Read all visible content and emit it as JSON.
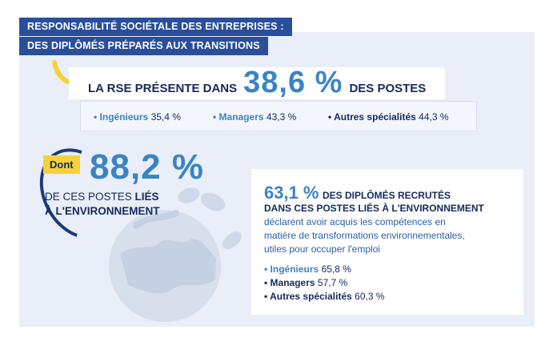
{
  "header": {
    "title_line1": "RESPONSABILITÉ SOCIÉTALE DES ENTREPRISES :",
    "title_line2": "DES DIPLÔMÉS PRÉPARÉS AUX TRANSITIONS"
  },
  "rse": {
    "lead": "LA RSE PRÉSENTE DANS",
    "value": "38,6 %",
    "tail": "DES POSTES"
  },
  "specialites": [
    {
      "label": "• Ingénieurs",
      "value": "35,4 %"
    },
    {
      "label": "• Managers",
      "value": "43,3 %"
    },
    {
      "label": "• Autres spécialités",
      "value": "44,3 %"
    }
  ],
  "environnement": {
    "tag": "Dont",
    "value": "88,2 %",
    "line1_prefix": "DE CES POSTES",
    "line1_bold": "LIÉS",
    "line2": "À L'ENVIRONNEMENT"
  },
  "card": {
    "pct": "63,1 %",
    "head_text": "DES DIPLÔMÉS RECRUTÉS",
    "sub": "DANS CES POSTES LIÉS À L'ENVIRONNEMENT",
    "body_line1": "déclarent avoir acquis les compétences en",
    "body_line2": "matière de transformations environnementales,",
    "body_line3": "utiles pour occuper l'emploi",
    "items": [
      {
        "label": "• Ingénieurs",
        "value": "65,8 %"
      },
      {
        "label": "• Managers",
        "value": "57,7 %"
      },
      {
        "label": "• Autres spécialités",
        "value": "60,3 %"
      }
    ]
  },
  "colors": {
    "navy": "#142a5c",
    "band": "#2a4e9a",
    "accent_blue": "#3b84c4",
    "yellow": "#f5d23a",
    "panel": "#e9eef8"
  },
  "icons": [
    "curved-arrow-icon",
    "globe-icon",
    "leaf-icon"
  ]
}
